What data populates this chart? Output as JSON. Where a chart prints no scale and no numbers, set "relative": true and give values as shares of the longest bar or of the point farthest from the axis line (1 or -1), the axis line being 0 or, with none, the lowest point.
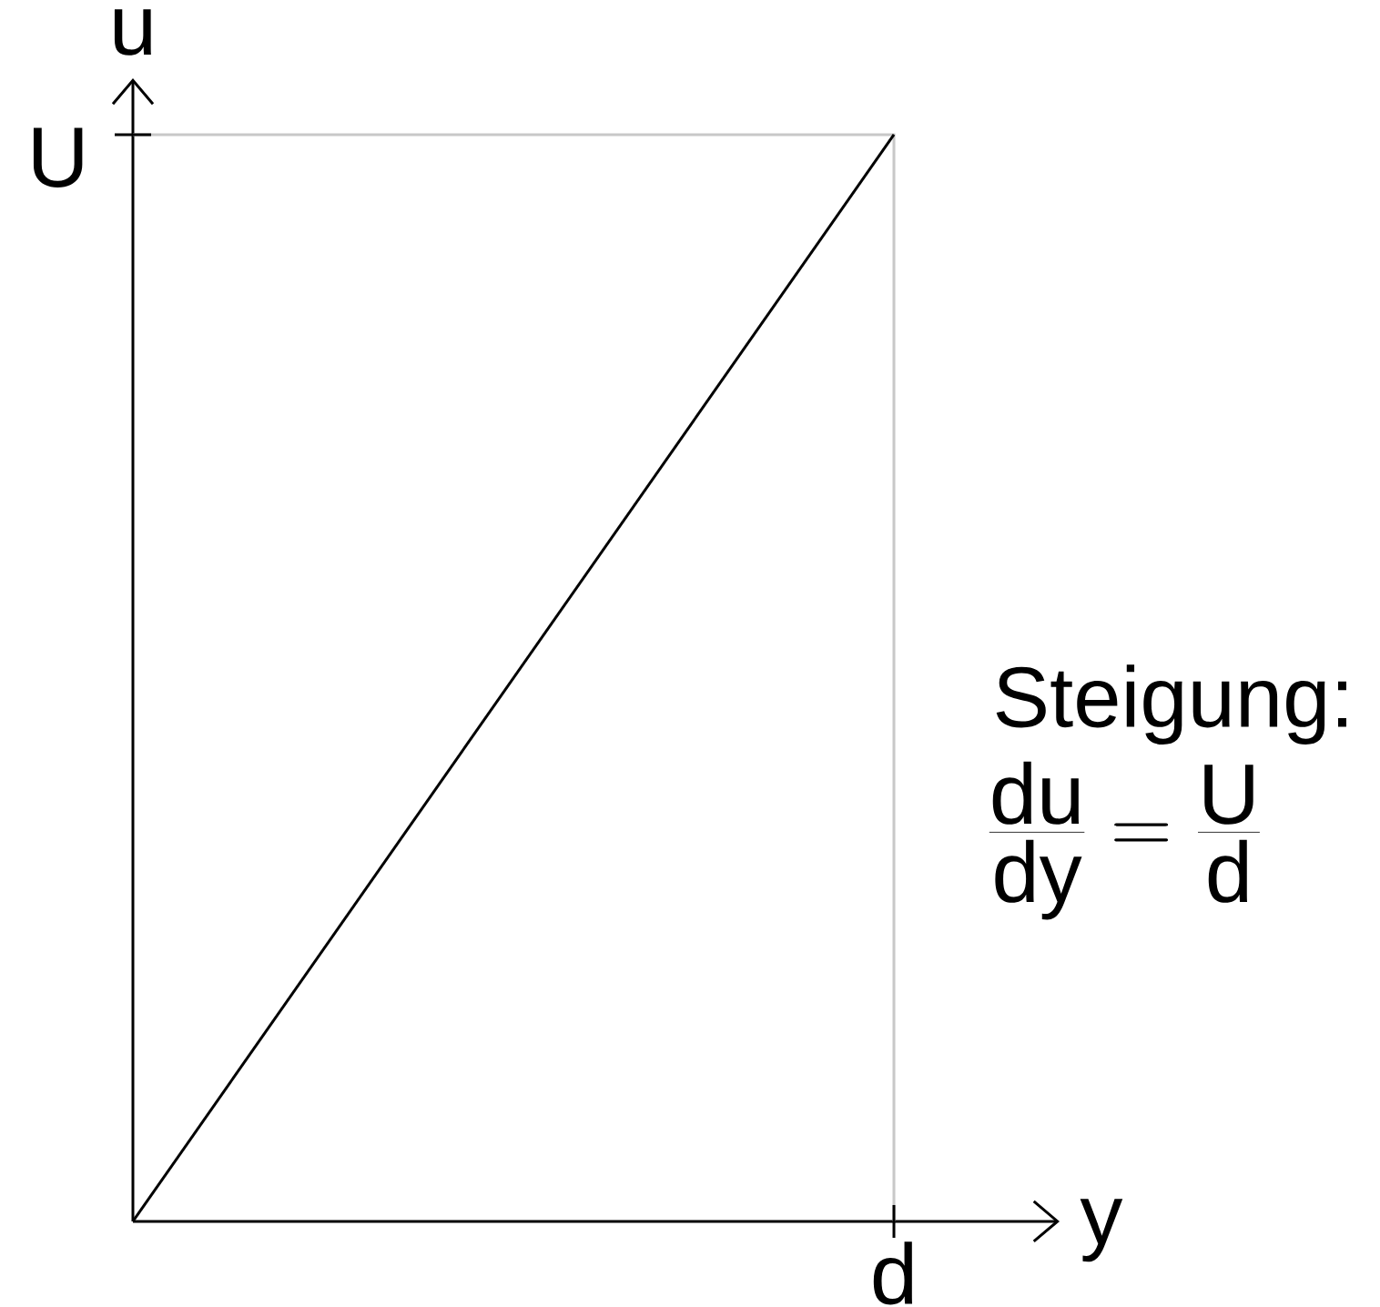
{
  "chart_data": {
    "type": "line",
    "xlabel": "y",
    "ylabel": "u",
    "categories": [
      null,
      null
    ],
    "values": [
      0,
      1
    ],
    "color": "#000000",
    "relative": true,
    "annotations": [
      "U",
      "d",
      "Steigung:",
      "\\frac{\\mathrm{du}}{\\mathrm{dy}}=\\frac{\\mathrm{U}}{\\mathrm{d}}"
    ]
  }
}
